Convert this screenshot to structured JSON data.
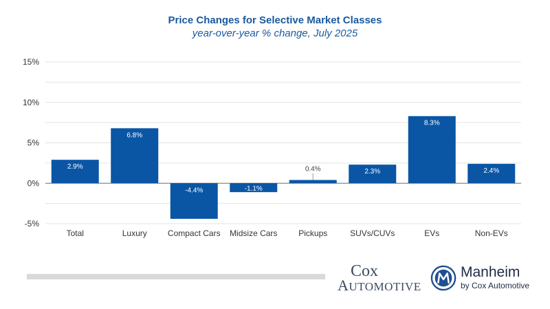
{
  "chart_data": {
    "type": "bar",
    "title": "Price Changes for Selective Market Classes",
    "subtitle": "year-over-year % change, July 2025",
    "xlabel": "",
    "ylabel": "",
    "ylim": [
      -5,
      15
    ],
    "y_ticks": [
      15,
      10,
      5,
      0,
      -5
    ],
    "y_tick_labels": [
      "15%",
      "10%",
      "5%",
      "0%",
      "-5%"
    ],
    "grid": true,
    "categories": [
      "Total",
      "Luxury",
      "Compact Cars",
      "Midsize Cars",
      "Pickups",
      "SUVs/CUVs",
      "EVs",
      "Non-EVs"
    ],
    "values": [
      2.9,
      6.8,
      -4.4,
      -1.1,
      0.4,
      2.3,
      8.3,
      2.4
    ],
    "data_labels": [
      "2.9%",
      "6.8%",
      "-4.4%",
      "-1.1%",
      "0.4%",
      "2.3%",
      "8.3%",
      "2.4%"
    ]
  },
  "colors": {
    "bar": "#0a56a5",
    "title": "#1a5aa0",
    "grid": "#e3e3e3",
    "axis": "#6b6b6b"
  },
  "logos": {
    "cox_line1": "Cox",
    "cox_line2": "Automotive",
    "manheim_name": "Manheim",
    "manheim_sub": "by Cox Automotive"
  }
}
